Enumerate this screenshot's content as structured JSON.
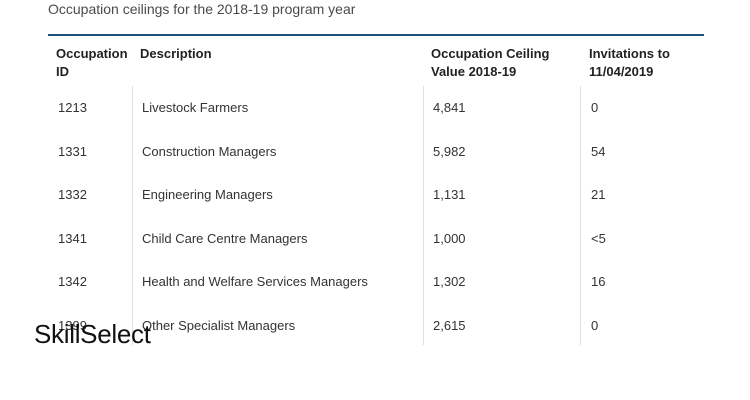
{
  "caption": "Occupation ceilings for the 2018-19 program year",
  "table": {
    "headers": {
      "id": "Occupation ID",
      "description": "Description",
      "ceiling": "Occupation Ceiling Value 2018-19",
      "invitations": "Invitations to 11/04/2019"
    },
    "rows": [
      {
        "id": "1213",
        "description": "Livestock Farmers",
        "ceiling": "4,841",
        "invitations": "0"
      },
      {
        "id": "1331",
        "description": "Construction Managers",
        "ceiling": "5,982",
        "invitations": "54"
      },
      {
        "id": "1332",
        "description": "Engineering Managers",
        "ceiling": "1,131",
        "invitations": "21"
      },
      {
        "id": "1341",
        "description": "Child Care Centre Managers",
        "ceiling": "1,000",
        "invitations": "<5"
      },
      {
        "id": "1342",
        "description": "Health and Welfare Services Managers",
        "ceiling": "1,302",
        "invitations": "16"
      },
      {
        "id": "1399",
        "description": "Other Specialist Managers",
        "ceiling": "2,615",
        "invitations": "0"
      }
    ]
  },
  "watermark": "SkillSelect",
  "colors": {
    "header_rule": "#1f4e79",
    "divider": "#e0e0e0"
  }
}
